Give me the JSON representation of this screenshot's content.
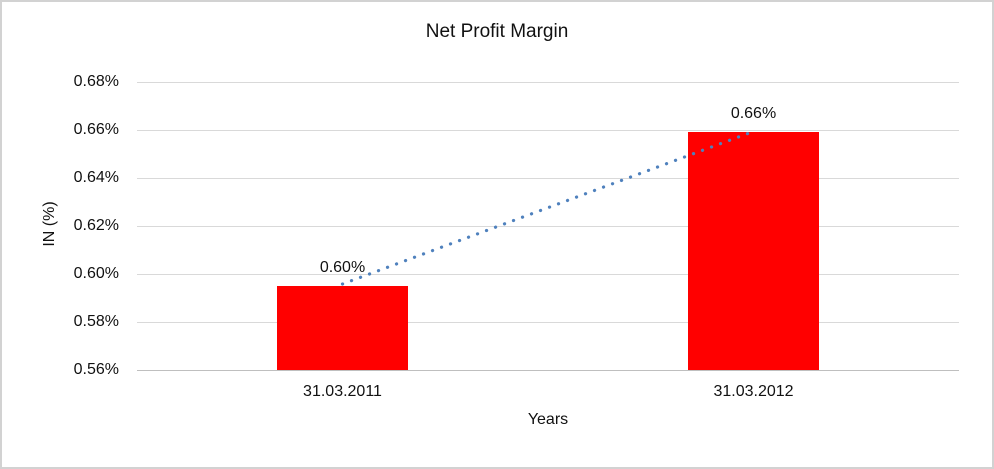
{
  "window": {
    "background": "#ffffff",
    "border_color": "#d2d2d2"
  },
  "chart_data": {
    "type": "bar",
    "title": "Net Profit Margin",
    "xlabel": "Years",
    "ylabel": "IN (%)",
    "categories": [
      "31.03.2011",
      "31.03.2012"
    ],
    "values": [
      0.595,
      0.659
    ],
    "data_labels": [
      "0.60%",
      "0.66%"
    ],
    "y_ticks": [
      "0.68%",
      "0.66%",
      "0.64%",
      "0.62%",
      "0.60%",
      "0.58%",
      "0.56%"
    ],
    "ylim": [
      0.56,
      0.68
    ],
    "y_tick_step": 0.02,
    "bar_color": "#ff0000",
    "gridline_color": "#d9d9d9",
    "axis_line_color": "#bfbfbf",
    "trendline": {
      "style": "dotted",
      "color": "#4f81bd"
    },
    "grid": true,
    "legend": "none"
  }
}
